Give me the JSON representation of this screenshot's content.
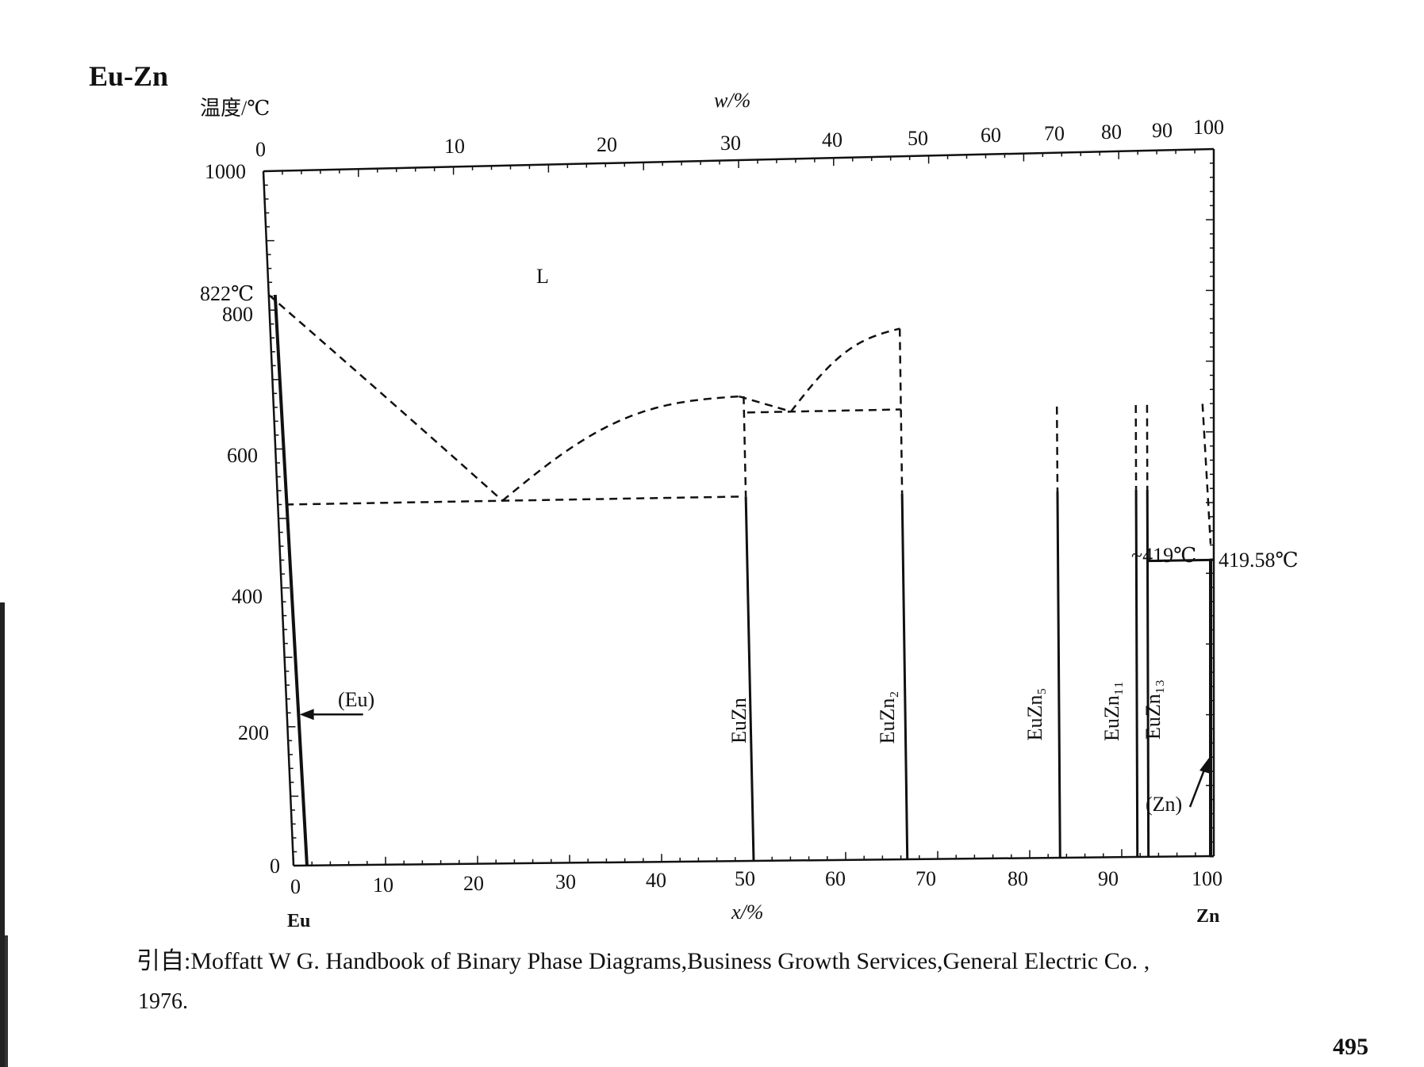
{
  "title": "Eu-Zn",
  "y_axis_label": "温度/℃",
  "top_axis_label": "w/%",
  "bottom_axis_label": "x/%",
  "left_element": "Eu",
  "right_element": "Zn",
  "citation_line1": "引自:Moffatt W G. Handbook of Binary Phase Diagrams,Business Growth Services,General Electric Co. ,",
  "citation_line2": "1976.",
  "page_number": "495",
  "labels": {
    "liquid": "L",
    "eu_melt": "822℃",
    "eu_phase": "(Eu)",
    "zn_phase": "(Zn)",
    "peritectic": "~419℃",
    "zn_melt": "419.58℃",
    "eutectic_400": "400"
  },
  "compounds": [
    "EuZn",
    "EuZn₂",
    "EuZn₅",
    "EuZn₁₁",
    "EuZn₁₃"
  ],
  "chart_data": {
    "type": "phase-diagram",
    "x_bottom_ticks": [
      0,
      10,
      20,
      30,
      40,
      50,
      60,
      70,
      80,
      90,
      100
    ],
    "x_top_ticks": [
      0,
      10,
      20,
      30,
      40,
      50,
      60,
      70,
      80,
      90,
      100
    ],
    "y_ticks": [
      0,
      200,
      400,
      600,
      800,
      1000
    ],
    "ylim": [
      0,
      1000
    ],
    "xlim": [
      0,
      100
    ],
    "liquidus_dashed": [
      [
        [
          0,
          822
        ],
        [
          24,
          520
        ]
      ],
      [
        [
          24,
          520
        ],
        [
          49.5,
          663
        ]
      ],
      [
        [
          49.5,
          663
        ],
        [
          55,
          640
        ]
      ],
      [
        [
          55,
          640
        ],
        [
          66.7,
          755
        ]
      ]
    ],
    "eutectic_lines": [
      {
        "x": [
          0,
          49.5
        ],
        "T": 520
      },
      {
        "x": [
          49.5,
          66.7
        ],
        "T": 640
      }
    ],
    "compound_lines": [
      {
        "name": "EuZn",
        "x": 50,
        "T_top": 663
      },
      {
        "name": "EuZn₂",
        "x": 66.7,
        "T_top": 755
      },
      {
        "name": "EuZn₅",
        "x": 83.3,
        "T_top": 640
      },
      {
        "name": "EuZn₁₁",
        "x": 91.7,
        "T_top": 640
      },
      {
        "name": "EuZn₁₃",
        "x": 92.9,
        "T_top": 640
      }
    ],
    "invariant_temperatures": [
      822,
      520,
      640,
      419,
      419.58
    ]
  }
}
